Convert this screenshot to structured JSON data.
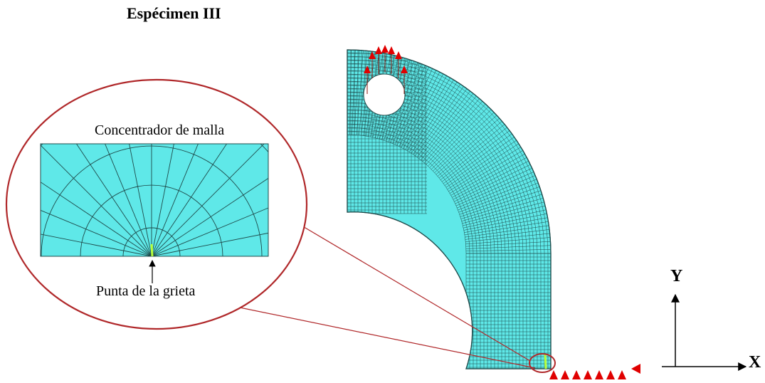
{
  "title": "Espécimen III",
  "zoom_callout": {
    "heading": "Concentrador de malla",
    "pointer_label": "Punta de la grieta"
  },
  "axes": {
    "x_label": "X",
    "y_label": "Y"
  },
  "colors": {
    "mesh_fill": "#5fe8e8",
    "mesh_line": "#1f4a4a",
    "callout_ring": "#b0282a",
    "load_arrow": "#e00000",
    "crack": "#b8ff3a"
  }
}
